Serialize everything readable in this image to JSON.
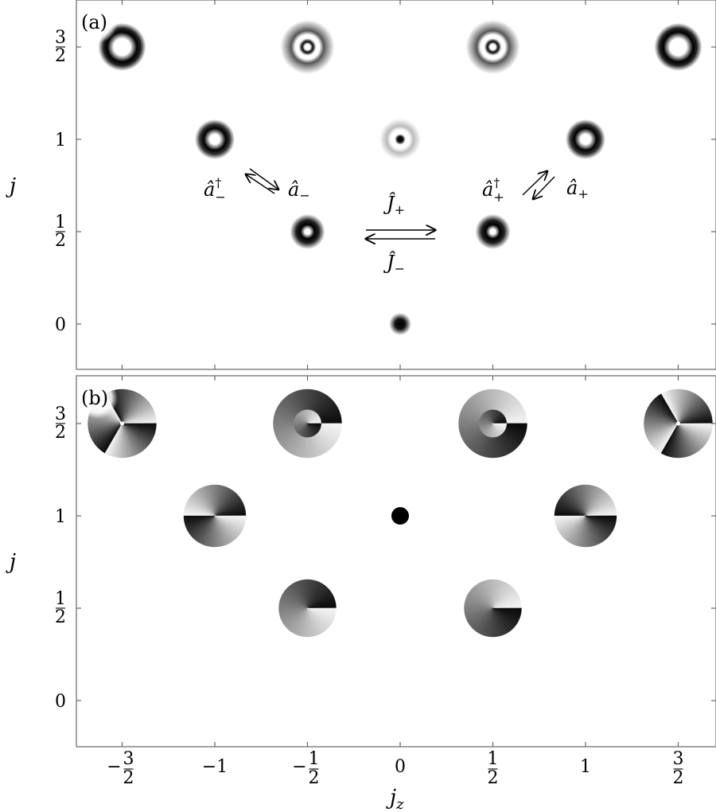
{
  "panels": [
    {
      "tag": "(a)",
      "ylabel": "j"
    },
    {
      "tag": "(b)",
      "ylabel": "j"
    }
  ],
  "xlabel": "j",
  "xlabel_sub": "z",
  "x_ticks": [
    {
      "num": "3",
      "den": "2",
      "sign": "−"
    },
    {
      "text": "−1"
    },
    {
      "num": "1",
      "den": "2",
      "sign": "−"
    },
    {
      "text": "0"
    },
    {
      "num": "1",
      "den": "2",
      "sign": ""
    },
    {
      "text": "1"
    },
    {
      "num": "3",
      "den": "2",
      "sign": ""
    }
  ],
  "y_ticks": [
    {
      "num": "3",
      "den": "2"
    },
    {
      "text": "1"
    },
    {
      "num": "1",
      "den": "2"
    },
    {
      "text": "0"
    }
  ],
  "operators": {
    "a_minus_dag": {
      "base": "â",
      "sup": "†",
      "sub": "−"
    },
    "a_minus": {
      "base": "â",
      "sub": "−"
    },
    "a_plus_dag": {
      "base": "â",
      "sup": "†",
      "sub": "+"
    },
    "a_plus": {
      "base": "â",
      "sub": "+"
    },
    "J_plus": {
      "base": "Ĵ",
      "sub": "+"
    },
    "J_minus": {
      "base": "Ĵ",
      "sub": "−"
    }
  },
  "modes_a": [
    {
      "jz": -1.5,
      "j": 1.5,
      "pattern": "ring-thick"
    },
    {
      "jz": -0.5,
      "j": 1.5,
      "pattern": "multi-ring"
    },
    {
      "jz": 0.5,
      "j": 1.5,
      "pattern": "multi-ring"
    },
    {
      "jz": 1.5,
      "j": 1.5,
      "pattern": "ring-thick"
    },
    {
      "jz": -1,
      "j": 1,
      "pattern": "ring"
    },
    {
      "jz": 0,
      "j": 1,
      "pattern": "center-dot-ring"
    },
    {
      "jz": 1,
      "j": 1,
      "pattern": "ring"
    },
    {
      "jz": -0.5,
      "j": 0.5,
      "pattern": "ring-small"
    },
    {
      "jz": 0.5,
      "j": 0.5,
      "pattern": "ring-small"
    },
    {
      "jz": 0,
      "j": 0,
      "pattern": "gaussian"
    }
  ],
  "modes_b": [
    {
      "jz": -1.5,
      "j": 1.5,
      "charge": -3,
      "inner": false
    },
    {
      "jz": -0.5,
      "j": 1.5,
      "charge": 1,
      "inner": true
    },
    {
      "jz": 0.5,
      "j": 1.5,
      "charge": -1,
      "inner": true
    },
    {
      "jz": 1.5,
      "j": 1.5,
      "charge": 3,
      "inner": false
    },
    {
      "jz": -1,
      "j": 1,
      "charge": 2,
      "inner": false
    },
    {
      "jz": 0,
      "j": 1,
      "charge": 0,
      "inner": false
    },
    {
      "jz": 1,
      "j": 1,
      "charge": -2,
      "inner": false
    },
    {
      "jz": -0.5,
      "j": 0.5,
      "charge": 1,
      "inner": false
    },
    {
      "jz": 0.5,
      "j": 0.5,
      "charge": -1,
      "inner": false
    }
  ]
}
